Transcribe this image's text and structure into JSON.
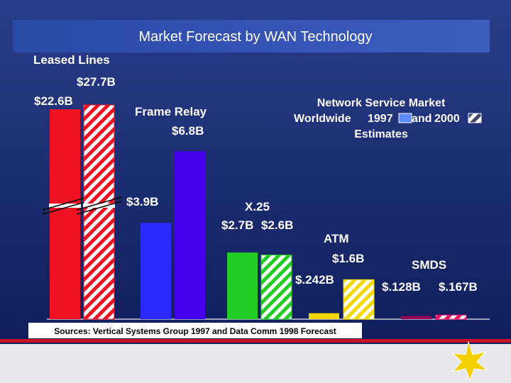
{
  "chart_data": {
    "type": "bar",
    "title": "Market Forecast by WAN Technology",
    "legend_title": "Network Service Market",
    "legend_prefix": "Worldwide",
    "legend_joiner": "and",
    "legend_suffix": "Estimates",
    "source": "Sources: Vertical Systems Group 1997 and Data Comm 1998 Forecast",
    "categories": [
      "Leased Lines",
      "Frame Relay",
      "X.25",
      "ATM",
      "SMDS"
    ],
    "series": [
      {
        "name": "1997",
        "legend_color": "#5b8cff",
        "colors": [
          "#ee1122",
          "#2b2bff",
          "#22cc22",
          "#f5d800",
          "#990055"
        ],
        "hatched": [
          false,
          false,
          false,
          false,
          false
        ],
        "values": [
          22.6,
          3.9,
          2.7,
          0.242,
          0.128
        ],
        "value_labels": [
          "$22.6B",
          "$3.9B",
          "$2.7B",
          "$.242B",
          "$.128B"
        ]
      },
      {
        "name": "2000",
        "legend_color": "#444466",
        "colors": [
          "#ee1122",
          "#4400ee",
          "#22cc22",
          "#f5d800",
          "#ee1166"
        ],
        "hatched": [
          true,
          false,
          true,
          true,
          true
        ],
        "values": [
          27.7,
          6.8,
          2.6,
          1.6,
          0.167
        ],
        "value_labels": [
          "$27.7B",
          "$6.8B",
          "$2.6B",
          "$1.6B",
          "$.167B"
        ]
      }
    ]
  }
}
